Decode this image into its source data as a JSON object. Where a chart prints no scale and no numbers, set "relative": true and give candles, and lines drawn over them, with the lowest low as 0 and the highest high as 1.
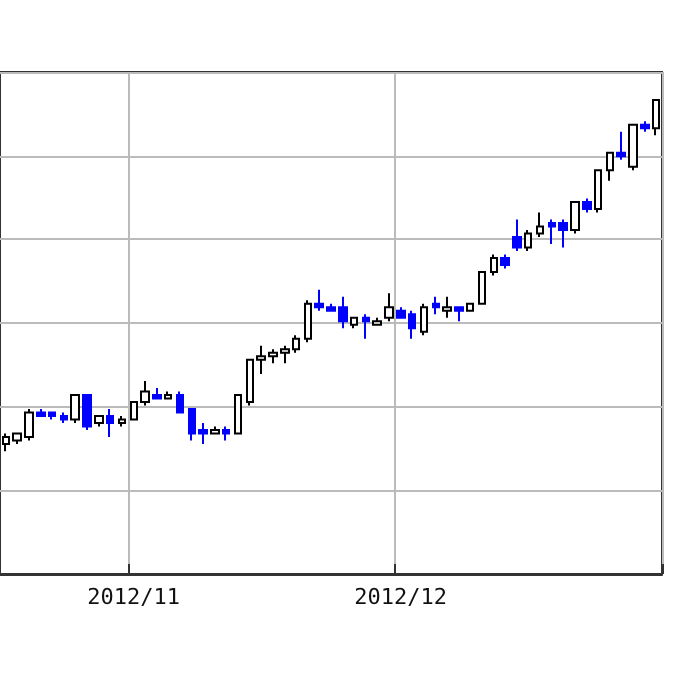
{
  "chart_data": {
    "type": "candlestick",
    "relative": true,
    "grid": true,
    "categories": [
      null,
      null,
      null,
      null,
      null,
      null,
      null,
      null,
      null,
      null,
      null,
      "2012/11",
      null,
      null,
      null,
      null,
      null,
      null,
      null,
      null,
      null,
      null,
      null,
      null,
      null,
      null,
      null,
      null,
      null,
      null,
      null,
      null,
      null,
      null,
      "2012/12",
      null,
      null,
      null,
      null,
      null,
      null,
      null,
      null,
      null,
      null,
      null,
      null,
      null,
      null,
      null,
      null,
      null,
      null,
      null,
      null,
      null,
      null
    ],
    "ohlc": [
      [
        0.02,
        0.05,
        0,
        0.04
      ],
      [
        0.03,
        0.05,
        0.02,
        0.05
      ],
      [
        0.04,
        0.12,
        0.03,
        0.11
      ],
      [
        0.11,
        0.12,
        0.1,
        0.1
      ],
      [
        0.11,
        0.11,
        0.09,
        0.1
      ],
      [
        0.1,
        0.11,
        0.08,
        0.09
      ],
      [
        0.09,
        0.16,
        0.08,
        0.16
      ],
      [
        0.16,
        0.16,
        0.06,
        0.07
      ],
      [
        0.08,
        0.1,
        0.07,
        0.1
      ],
      [
        0.1,
        0.12,
        0.04,
        0.08
      ],
      [
        0.08,
        0.1,
        0.07,
        0.09
      ],
      [
        0.09,
        0.14,
        0.09,
        0.14
      ],
      [
        0.14,
        0.2,
        0.13,
        0.17
      ],
      [
        0.16,
        0.18,
        0.15,
        0.15
      ],
      [
        0.15,
        0.17,
        0.15,
        0.16
      ],
      [
        0.16,
        0.17,
        0.11,
        0.11
      ],
      [
        0.12,
        0.12,
        0.03,
        0.05
      ],
      [
        0.06,
        0.08,
        0.02,
        0.05
      ],
      [
        0.05,
        0.07,
        0.05,
        0.06
      ],
      [
        0.06,
        0.07,
        0.03,
        0.05
      ],
      [
        0.05,
        0.16,
        0.05,
        0.16
      ],
      [
        0.14,
        0.26,
        0.13,
        0.26
      ],
      [
        0.26,
        0.3,
        0.22,
        0.27
      ],
      [
        0.27,
        0.29,
        0.25,
        0.28
      ],
      [
        0.28,
        0.3,
        0.25,
        0.29
      ],
      [
        0.29,
        0.33,
        0.28,
        0.32
      ],
      [
        0.32,
        0.43,
        0.31,
        0.42
      ],
      [
        0.42,
        0.46,
        0.4,
        0.41
      ],
      [
        0.41,
        0.42,
        0.4,
        0.4
      ],
      [
        0.41,
        0.44,
        0.35,
        0.37
      ],
      [
        0.36,
        0.38,
        0.35,
        0.38
      ],
      [
        0.38,
        0.39,
        0.32,
        0.37
      ],
      [
        0.36,
        0.38,
        0.36,
        0.37
      ],
      [
        0.38,
        0.45,
        0.37,
        0.41
      ],
      [
        0.4,
        0.41,
        0.38,
        0.38
      ],
      [
        0.39,
        0.4,
        0.32,
        0.35
      ],
      [
        0.34,
        0.42,
        0.33,
        0.41
      ],
      [
        0.42,
        0.44,
        0.39,
        0.41
      ],
      [
        0.4,
        0.44,
        0.38,
        0.41
      ],
      [
        0.41,
        0.41,
        0.37,
        0.4
      ],
      [
        0.4,
        0.42,
        0.4,
        0.42
      ],
      [
        0.42,
        0.51,
        0.42,
        0.51
      ],
      [
        0.51,
        0.56,
        0.5,
        0.55
      ],
      [
        0.55,
        0.56,
        0.52,
        0.53
      ],
      [
        0.61,
        0.66,
        0.57,
        0.58
      ],
      [
        0.58,
        0.63,
        0.57,
        0.62
      ],
      [
        0.62,
        0.68,
        0.61,
        0.64
      ],
      [
        0.65,
        0.66,
        0.59,
        0.64
      ],
      [
        0.65,
        0.66,
        0.58,
        0.63
      ],
      [
        0.63,
        0.71,
        0.62,
        0.71
      ],
      [
        0.71,
        0.72,
        0.68,
        0.69
      ],
      [
        0.69,
        0.8,
        0.68,
        0.8
      ],
      [
        0.8,
        0.85,
        0.77,
        0.85
      ],
      [
        0.85,
        0.91,
        0.83,
        0.84
      ],
      [
        0.81,
        0.93,
        0.8,
        0.93
      ],
      [
        0.93,
        0.94,
        0.91,
        0.92
      ],
      [
        0.92,
        1,
        0.9,
        1
      ]
    ],
    "colors": [
      "#ffffff",
      "#ffffff",
      "#ffffff",
      "#0000ff",
      "#0000ff",
      "#0000ff",
      "#ffffff",
      "#0000ff",
      "#ffffff",
      "#0000ff",
      "#ffffff",
      "#ffffff",
      "#ffffff",
      "#0000ff",
      "#ffffff",
      "#0000ff",
      "#0000ff",
      "#0000ff",
      "#ffffff",
      "#0000ff",
      "#ffffff",
      "#ffffff",
      "#ffffff",
      "#ffffff",
      "#ffffff",
      "#ffffff",
      "#ffffff",
      "#0000ff",
      "#0000ff",
      "#0000ff",
      "#ffffff",
      "#0000ff",
      "#ffffff",
      "#ffffff",
      "#0000ff",
      "#0000ff",
      "#ffffff",
      "#0000ff",
      "#ffffff",
      "#0000ff",
      "#ffffff",
      "#ffffff",
      "#ffffff",
      "#0000ff",
      "#0000ff",
      "#ffffff",
      "#ffffff",
      "#0000ff",
      "#0000ff",
      "#ffffff",
      "#0000ff",
      "#ffffff",
      "#ffffff",
      "#0000ff",
      "#ffffff",
      "#0000ff",
      "#ffffff"
    ]
  }
}
